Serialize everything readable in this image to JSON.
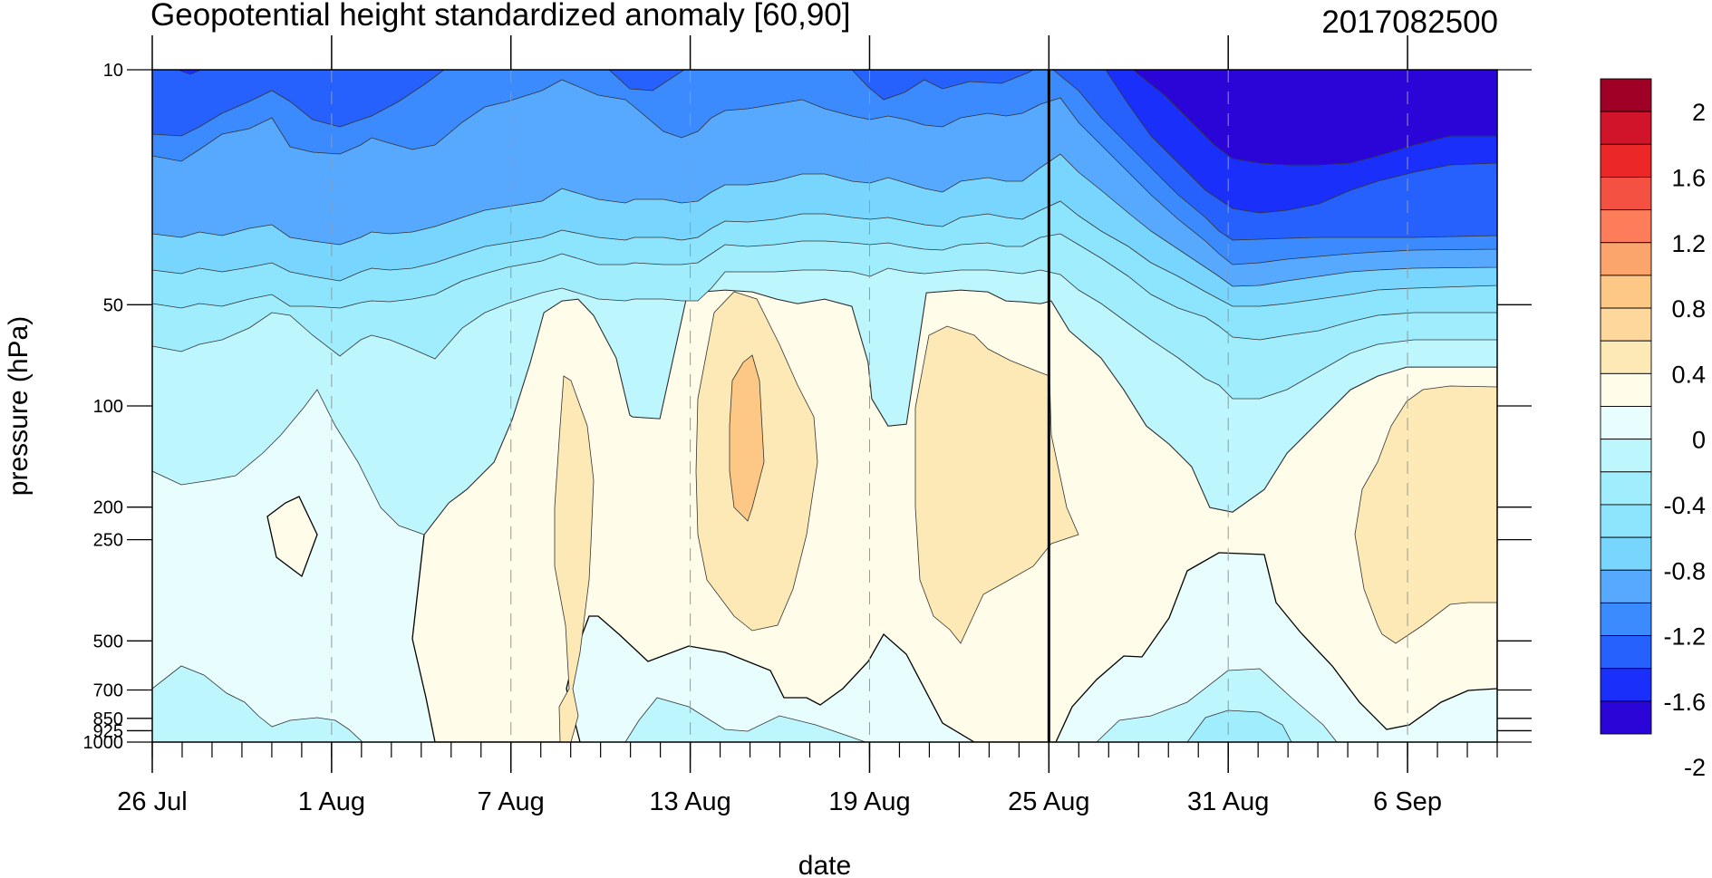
{
  "chart_data": {
    "type": "contour",
    "title": "Geopotential height standardized anomaly [60,90]",
    "date_stamp": "2017082500",
    "xlabel": "date",
    "ylabel": "pressure (hPa)",
    "x_ticks": [
      "26 Jul",
      "1 Aug",
      "7 Aug",
      "13 Aug",
      "19 Aug",
      "25 Aug",
      "31 Aug",
      "6 Sep"
    ],
    "x_range": [
      "2017-07-26",
      "2017-09-09"
    ],
    "y_ticks": [
      "10",
      "50",
      "100",
      "200",
      "250",
      "500",
      "700",
      "850",
      "925",
      "1000"
    ],
    "y_scale": "log",
    "y_range": [
      1000,
      10
    ],
    "current_date": "25 Aug",
    "grid": "dashed vertical lines at major date ticks",
    "colorbar": {
      "labels": [
        "2",
        "1.6",
        "1.2",
        "0.8",
        "0.4",
        "0",
        "-0.4",
        "-0.8",
        "-1.2",
        "-1.6",
        "-2"
      ],
      "levels": [
        -2.2,
        -2,
        -1.8,
        -1.6,
        -1.4,
        -1.2,
        -1,
        -0.8,
        -0.6,
        -0.4,
        -0.2,
        0,
        0.2,
        0.4,
        0.6,
        0.8,
        1,
        1.2,
        1.4,
        1.6,
        1.8,
        2,
        2.2
      ],
      "colors": [
        "#9e0026",
        "#d1142a",
        "#ec2727",
        "#f45142",
        "#fd7d5a",
        "#fba56c",
        "#fdc785",
        "#fdd79b",
        "#fde9b5",
        "#fffce9",
        "#e7fdfe",
        "#bdf6fd",
        "#a0eefd",
        "#8de4fd",
        "#78d5fd",
        "#57a9ff",
        "#3b8bfe",
        "#2661fd",
        "#1a2ff9",
        "#2b05d8"
      ]
    },
    "fill_colors": {
      "neg_2": "#2b05d8",
      "neg_1_8": "#1a2ff9",
      "neg_1_6": "#2661fd",
      "neg_1_4": "#3b8bfe",
      "neg_1_2": "#57a9ff",
      "neg_1": "#78d5fd",
      "neg_0_8": "#8de4fd",
      "neg_0_6": "#a0eefd",
      "neg_0_4": "#bdf6fd",
      "neg_0_2": "#e7fdfe",
      "pos_0": "#fffce9",
      "pos_0_2": "#fde9b5",
      "pos_0_4": "#fdd79b",
      "pos_0_6": "#fdc785"
    }
  }
}
